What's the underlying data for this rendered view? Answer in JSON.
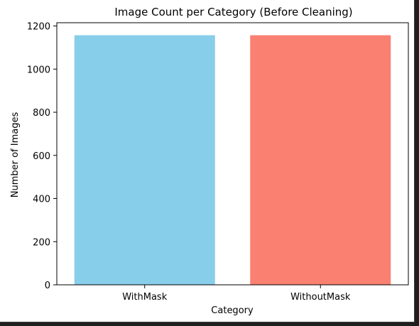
{
  "chart_data": {
    "type": "bar",
    "title": "Image Count per Category (Before Cleaning)",
    "xlabel": "Category",
    "ylabel": "Number of Images",
    "categories": [
      "WithMask",
      "WithoutMask"
    ],
    "values": [
      1157,
      1157
    ],
    "colors": [
      "#87ceeb",
      "#fa8072"
    ],
    "ylim": [
      0,
      1215
    ],
    "yticks": [
      0,
      200,
      400,
      600,
      800,
      1000,
      1200
    ],
    "grid": false,
    "legend": "none"
  }
}
